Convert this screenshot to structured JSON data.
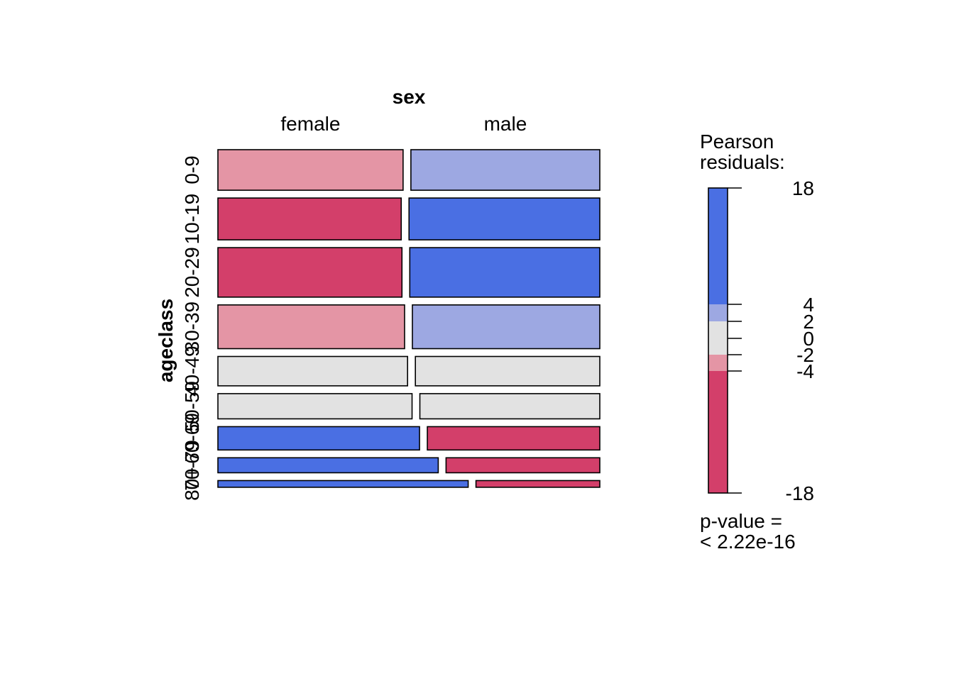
{
  "chart_data": {
    "type": "mosaic",
    "col_variable": "sex",
    "row_variable": "ageclass",
    "col_categories": [
      "female",
      "male"
    ],
    "row_categories": [
      "0-9",
      "10-19",
      "20-29",
      "30-39",
      "40-49",
      "50-59",
      "60-69",
      "70-79",
      "80+"
    ],
    "row_proportions": [
      0.127,
      0.131,
      0.155,
      0.137,
      0.092,
      0.079,
      0.073,
      0.047,
      0.021
    ],
    "female_share": [
      0.495,
      0.49,
      0.492,
      0.499,
      0.507,
      0.519,
      0.539,
      0.589,
      0.669
    ],
    "residual_band": [
      "neg-mid",
      "neg-strong",
      "neg-strong",
      "neg-mid",
      "neutral",
      "neutral",
      "pos-strong",
      "pos-strong",
      "pos-strong"
    ],
    "legend": {
      "title_line1": "Pearson",
      "title_line2": "residuals:",
      "ticks": [
        18,
        4,
        2,
        0,
        -2,
        -4,
        -18
      ],
      "tick_labels": [
        "18",
        "4",
        "2",
        "0",
        "-2",
        "-4",
        "-18"
      ],
      "range": [
        -18,
        18
      ],
      "bands": [
        {
          "from": 4,
          "to": 18,
          "color": "#4a6fe3"
        },
        {
          "from": 2,
          "to": 4,
          "color": "#9da8e2"
        },
        {
          "from": -2,
          "to": 2,
          "color": "#e2e2e2"
        },
        {
          "from": -4,
          "to": -2,
          "color": "#e495a5"
        },
        {
          "from": -18,
          "to": -4,
          "color": "#d33f6a"
        }
      ]
    },
    "pvalue_line1": "p-value =",
    "pvalue_line2": "< 2.22e-16"
  },
  "colors": {
    "pos-strong": "#4a6fe3",
    "pos-mid": "#9da8e2",
    "neutral": "#e2e2e2",
    "neg-mid": "#e495a5",
    "neg-strong": "#d33f6a"
  }
}
